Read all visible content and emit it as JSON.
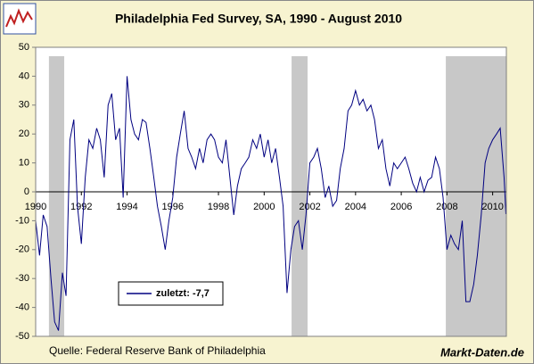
{
  "chart_data": {
    "type": "line",
    "title": "Philadelphia Fed Survey, SA, 1990 - August 2010",
    "source": "Quelle: Federal Reserve Bank of Philadelphia",
    "brand": "Markt-Daten.de",
    "x": [
      1990,
      1990.17,
      1990.33,
      1990.5,
      1990.67,
      1990.83,
      1991,
      1991.17,
      1991.33,
      1991.5,
      1991.67,
      1991.83,
      1992,
      1992.17,
      1992.33,
      1992.5,
      1992.67,
      1992.83,
      1993,
      1993.17,
      1993.33,
      1993.5,
      1993.67,
      1993.83,
      1994,
      1994.17,
      1994.33,
      1994.5,
      1994.67,
      1994.83,
      1995,
      1995.17,
      1995.33,
      1995.5,
      1995.67,
      1995.83,
      1996,
      1996.17,
      1996.33,
      1996.5,
      1996.67,
      1996.83,
      1997,
      1997.17,
      1997.33,
      1997.5,
      1997.67,
      1997.83,
      1998,
      1998.17,
      1998.33,
      1998.5,
      1998.67,
      1998.83,
      1999,
      1999.17,
      1999.33,
      1999.5,
      1999.67,
      1999.83,
      2000,
      2000.17,
      2000.33,
      2000.5,
      2000.67,
      2000.83,
      2001,
      2001.17,
      2001.33,
      2001.5,
      2001.67,
      2001.83,
      2002,
      2002.17,
      2002.33,
      2002.5,
      2002.67,
      2002.83,
      2003,
      2003.17,
      2003.33,
      2003.5,
      2003.67,
      2003.83,
      2004,
      2004.17,
      2004.33,
      2004.5,
      2004.67,
      2004.83,
      2005,
      2005.17,
      2005.33,
      2005.5,
      2005.67,
      2005.83,
      2006,
      2006.17,
      2006.33,
      2006.5,
      2006.67,
      2006.83,
      2007,
      2007.17,
      2007.33,
      2007.5,
      2007.67,
      2007.83,
      2008,
      2008.17,
      2008.33,
      2008.5,
      2008.67,
      2008.83,
      2009,
      2009.17,
      2009.33,
      2009.5,
      2009.67,
      2009.83,
      2010,
      2010.17,
      2010.33,
      2010.5,
      2010.58
    ],
    "series": [
      {
        "name": "zuletzt: -7,7",
        "color": "#000080",
        "values": [
          -10,
          -22,
          -8,
          -12,
          -30,
          -45,
          -48,
          -28,
          -36,
          18,
          25,
          -5,
          -18,
          5,
          18,
          15,
          22,
          18,
          5,
          30,
          34,
          18,
          22,
          -2,
          40,
          25,
          20,
          18,
          25,
          24,
          15,
          5,
          -5,
          -12,
          -20,
          -10,
          -2,
          12,
          20,
          28,
          15,
          12,
          8,
          15,
          10,
          18,
          20,
          18,
          12,
          10,
          18,
          5,
          -8,
          2,
          8,
          10,
          12,
          18,
          15,
          20,
          12,
          18,
          10,
          15,
          5,
          -5,
          -35,
          -20,
          -12,
          -10,
          -20,
          -8,
          10,
          12,
          15,
          8,
          -2,
          2,
          -5,
          -3,
          8,
          15,
          28,
          30,
          35,
          30,
          32,
          28,
          30,
          25,
          15,
          18,
          8,
          2,
          10,
          8,
          10,
          12,
          8,
          3,
          0,
          5,
          0,
          4,
          5,
          12,
          8,
          -2,
          -20,
          -15,
          -18,
          -20,
          -10,
          -38,
          -38,
          -32,
          -22,
          -8,
          10,
          15,
          18,
          20,
          22,
          5,
          -7.7
        ]
      }
    ],
    "recessions": [
      [
        1990.58,
        1991.25
      ],
      [
        2001.2,
        2001.9
      ],
      [
        2007.95,
        2010.6
      ]
    ],
    "xlim": [
      1990,
      2010.6
    ],
    "xticks": [
      1990,
      1992,
      1994,
      1996,
      1998,
      2000,
      2002,
      2004,
      2006,
      2008,
      2010
    ],
    "ylim": [
      -50,
      50
    ],
    "yticks": [
      -50,
      -40,
      -30,
      -20,
      -10,
      0,
      10,
      20,
      30,
      40,
      50
    ],
    "legend": "lower-left"
  }
}
